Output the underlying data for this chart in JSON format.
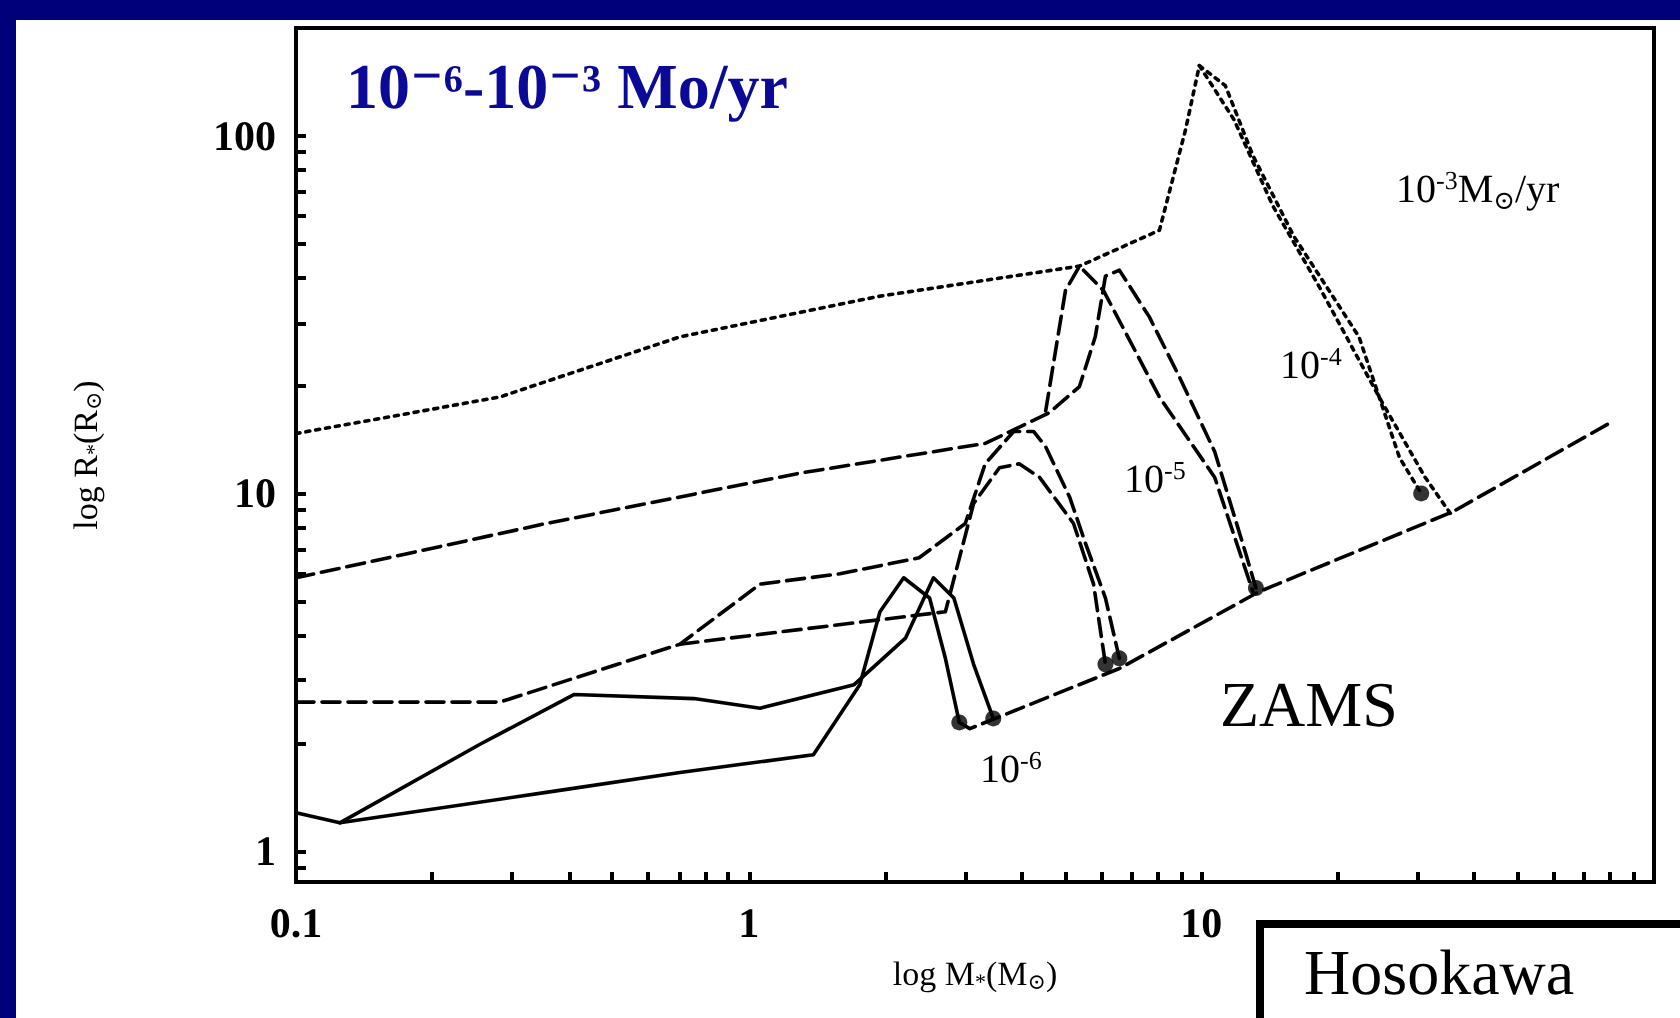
{
  "chart_data": {
    "type": "line",
    "title": "10⁻⁶-10⁻³ Mo/yr",
    "xlabel": "log M$_{*}$(M$_{⊙}$)",
    "ylabel": "log R$_{*}$(R$_{⊙}$)",
    "log": "xy",
    "grid": false,
    "xlim": [
      0.1,
      100
    ],
    "ylim": [
      0.82,
      200
    ],
    "xticks": [
      0.1,
      {
        "value": 0.2,
        "label": null
      },
      {
        "value": 0.3,
        "label": null
      },
      {
        "value": 0.4,
        "label": null
      },
      {
        "value": 0.5,
        "label": null
      },
      {
        "value": 0.6,
        "label": null
      },
      {
        "value": 0.7,
        "label": null
      },
      {
        "value": 0.8,
        "label": null
      },
      {
        "value": 0.9,
        "label": null
      },
      1,
      {
        "value": 2,
        "label": null
      },
      {
        "value": 3,
        "label": null
      },
      {
        "value": 4,
        "label": null
      },
      {
        "value": 5,
        "label": null
      },
      {
        "value": 6,
        "label": null
      },
      {
        "value": 7,
        "label": null
      },
      {
        "value": 8,
        "label": null
      },
      {
        "value": 9,
        "label": null
      },
      10,
      {
        "value": 20,
        "label": null
      },
      {
        "value": 30,
        "label": null
      },
      {
        "value": 40,
        "label": null
      },
      {
        "value": 50,
        "label": null
      },
      {
        "value": 60,
        "label": null
      },
      {
        "value": 70,
        "label": null
      },
      {
        "value": 80,
        "label": null
      },
      {
        "value": 90,
        "label": null
      }
    ],
    "yticks": [
      {
        "value": 0.9,
        "label": null
      },
      1,
      {
        "value": 2,
        "label": null
      },
      {
        "value": 3,
        "label": null
      },
      {
        "value": 4,
        "label": null
      },
      {
        "value": 5,
        "label": null
      },
      {
        "value": 6,
        "label": null
      },
      {
        "value": 7,
        "label": null
      },
      {
        "value": 8,
        "label": null
      },
      {
        "value": 9,
        "label": null
      },
      10,
      {
        "value": 20,
        "label": null
      },
      {
        "value": 30,
        "label": null
      },
      {
        "value": 40,
        "label": null
      },
      {
        "value": 50,
        "label": null
      },
      {
        "value": 60,
        "label": null
      },
      {
        "value": 70,
        "label": null
      },
      {
        "value": 80,
        "label": null
      },
      {
        "value": 90,
        "label": null
      },
      100,
      {
        "value": 200,
        "label": null
      }
    ],
    "series": [
      {
        "color": "#000000",
        "line_style": "dotted",
        "x": [
          0.1,
          0.282,
          0.705,
          1.95,
          5.38,
          8.08,
          9.23,
          9.9,
          11.3,
          13.0,
          16.0,
          22.3,
          27.4,
          30.6
        ],
        "values": [
          14.7,
          18.6,
          27.4,
          35.6,
          43.2,
          54.4,
          104,
          157,
          138,
          88,
          52.4,
          27.4,
          12.6,
          10
        ]
      },
      {
        "color": "#000000",
        "line_style": "dotted",
        "x": [
          9.9,
          11.8,
          14.4,
          18.2,
          24.7,
          31.2,
          36.0
        ],
        "values": [
          157,
          111,
          63.5,
          37.9,
          18.6,
          11.1,
          8.57
        ]
      },
      {
        "color": "#000000",
        "line_style": "dashed",
        "x": [
          0.1,
          0.357,
          1.3,
          3.33,
          4.61,
          5.38,
          5.83,
          6.14,
          6.59,
          7.67,
          8.94,
          10.7,
          12.5,
          13.2
        ],
        "values": [
          5.81,
          8.24,
          11.4,
          13.8,
          16.8,
          19.9,
          27.4,
          40.5,
          42.1,
          31.2,
          21.2,
          13.1,
          6.87,
          5.44
        ]
      },
      {
        "color": "#000000",
        "line_style": "dashed",
        "x": [
          4.53,
          5.01,
          5.38,
          6.08,
          8.08,
          10.7,
          13.0
        ],
        "values": [
          17.0,
          36.9,
          43.2,
          36.9,
          18.6,
          11.1,
          5.31
        ]
      },
      {
        "color": "#000000",
        "line_style": "dashed",
        "x": [
          0.1,
          0.282,
          0.705,
          1.06,
          1.59,
          2.38,
          3.01,
          3.33,
          3.85,
          4.26,
          4.53,
          5.12,
          5.55,
          6.14,
          6.59
        ],
        "values": [
          2.61,
          2.61,
          3.79,
          5.58,
          5.96,
          6.61,
          8.24,
          12.1,
          14.9,
          14.9,
          13.5,
          9.75,
          7.24,
          5.1,
          3.46
        ]
      },
      {
        "color": "#000000",
        "line_style": "dashed",
        "x": [
          0.705,
          2.72,
          3.14,
          3.58,
          3.96,
          4.39,
          5.22,
          5.78,
          6.14
        ],
        "values": [
          3.79,
          4.67,
          9.37,
          11.8,
          12.1,
          11.1,
          8.24,
          5.58,
          3.33
        ]
      },
      {
        "color": "#000000",
        "line_style": "solid",
        "x": [
          0.1,
          0.125,
          0.255,
          0.411,
          0.757,
          1.06,
          1.71,
          2.22,
          2.56,
          2.84,
          3.14,
          3.47
        ],
        "values": [
          1.28,
          1.2,
          1.99,
          2.74,
          2.67,
          2.51,
          2.92,
          3.94,
          5.81,
          5.1,
          3.33,
          2.35
        ]
      },
      {
        "color": "#000000",
        "line_style": "solid",
        "x": [
          0.125,
          0.357,
          0.705,
          1.39,
          1.76,
          1.95,
          2.2,
          2.51,
          2.72,
          2.92
        ],
        "values": [
          1.2,
          1.46,
          1.66,
          1.86,
          2.92,
          4.67,
          5.81,
          5.1,
          3.46,
          2.29
        ]
      },
      {
        "color": "#000000",
        "line_style": "dashed",
        "x": [
          2.92,
          3.08,
          6.59,
          13.4,
          36.0,
          79.6
        ],
        "values": [
          2.29,
          2.2,
          3.24,
          5.31,
          8.9,
          15.7
        ]
      },
      {
        "type": "scatter",
        "color": "#000000",
        "marker": "circle",
        "x": [
          2.92,
          3.47,
          6.14,
          6.59,
          13.2,
          30.6
        ],
        "values": [
          2.29,
          2.35,
          3.33,
          3.46,
          5.44,
          10
        ]
      }
    ],
    "annotations": [
      "10$^{-3}$M$_{⊙}$/yr",
      "10$^{-4}$",
      "10$^{-5}$",
      "10$^{-6}$",
      "ZAMS",
      "Hosokawa"
    ]
  }
}
